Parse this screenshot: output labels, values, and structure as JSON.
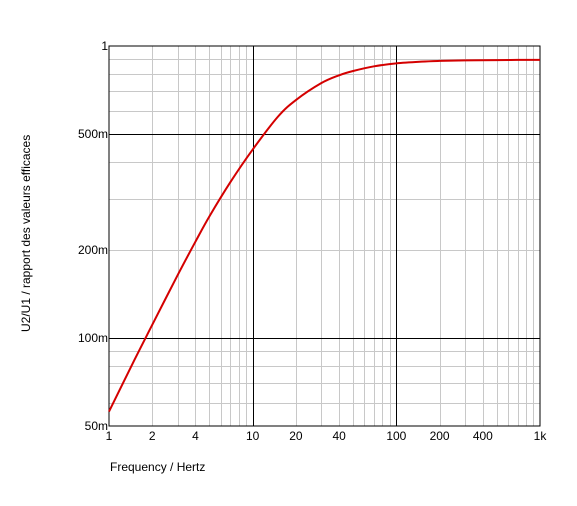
{
  "chart_data": {
    "type": "line",
    "xlabel": "Frequency / Hertz",
    "ylabel": "U2/U1 / rapport des valeurs efficaces",
    "xscale": "log",
    "yscale": "log",
    "xlim": [
      1,
      1000
    ],
    "ylim": [
      0.05,
      1
    ],
    "grid": true,
    "x_ticks": [
      {
        "value": 1,
        "label": "1"
      },
      {
        "value": 2,
        "label": "2"
      },
      {
        "value": 4,
        "label": "4"
      },
      {
        "value": 10,
        "label": "10"
      },
      {
        "value": 20,
        "label": "20"
      },
      {
        "value": 40,
        "label": "40"
      },
      {
        "value": 100,
        "label": "100"
      },
      {
        "value": 200,
        "label": "200"
      },
      {
        "value": 400,
        "label": "400"
      },
      {
        "value": 1000,
        "label": "1k"
      }
    ],
    "y_ticks": [
      {
        "value": 0.05,
        "label": "50m"
      },
      {
        "value": 0.1,
        "label": "100m"
      },
      {
        "value": 0.2,
        "label": "200m"
      },
      {
        "value": 0.5,
        "label": "500m"
      },
      {
        "value": 1,
        "label": "1"
      }
    ],
    "series": [
      {
        "color": "#d40000",
        "x": [
          1,
          1.5,
          2,
          3,
          4,
          5,
          7,
          10,
          15,
          20,
          30,
          40,
          50,
          70,
          100,
          150,
          200,
          300,
          500,
          700,
          1000
        ],
        "y": [
          0.056,
          0.084,
          0.111,
          0.164,
          0.214,
          0.261,
          0.342,
          0.442,
          0.573,
          0.653,
          0.746,
          0.794,
          0.821,
          0.852,
          0.872,
          0.884,
          0.889,
          0.893,
          0.895,
          0.896,
          0.896
        ]
      }
    ]
  }
}
